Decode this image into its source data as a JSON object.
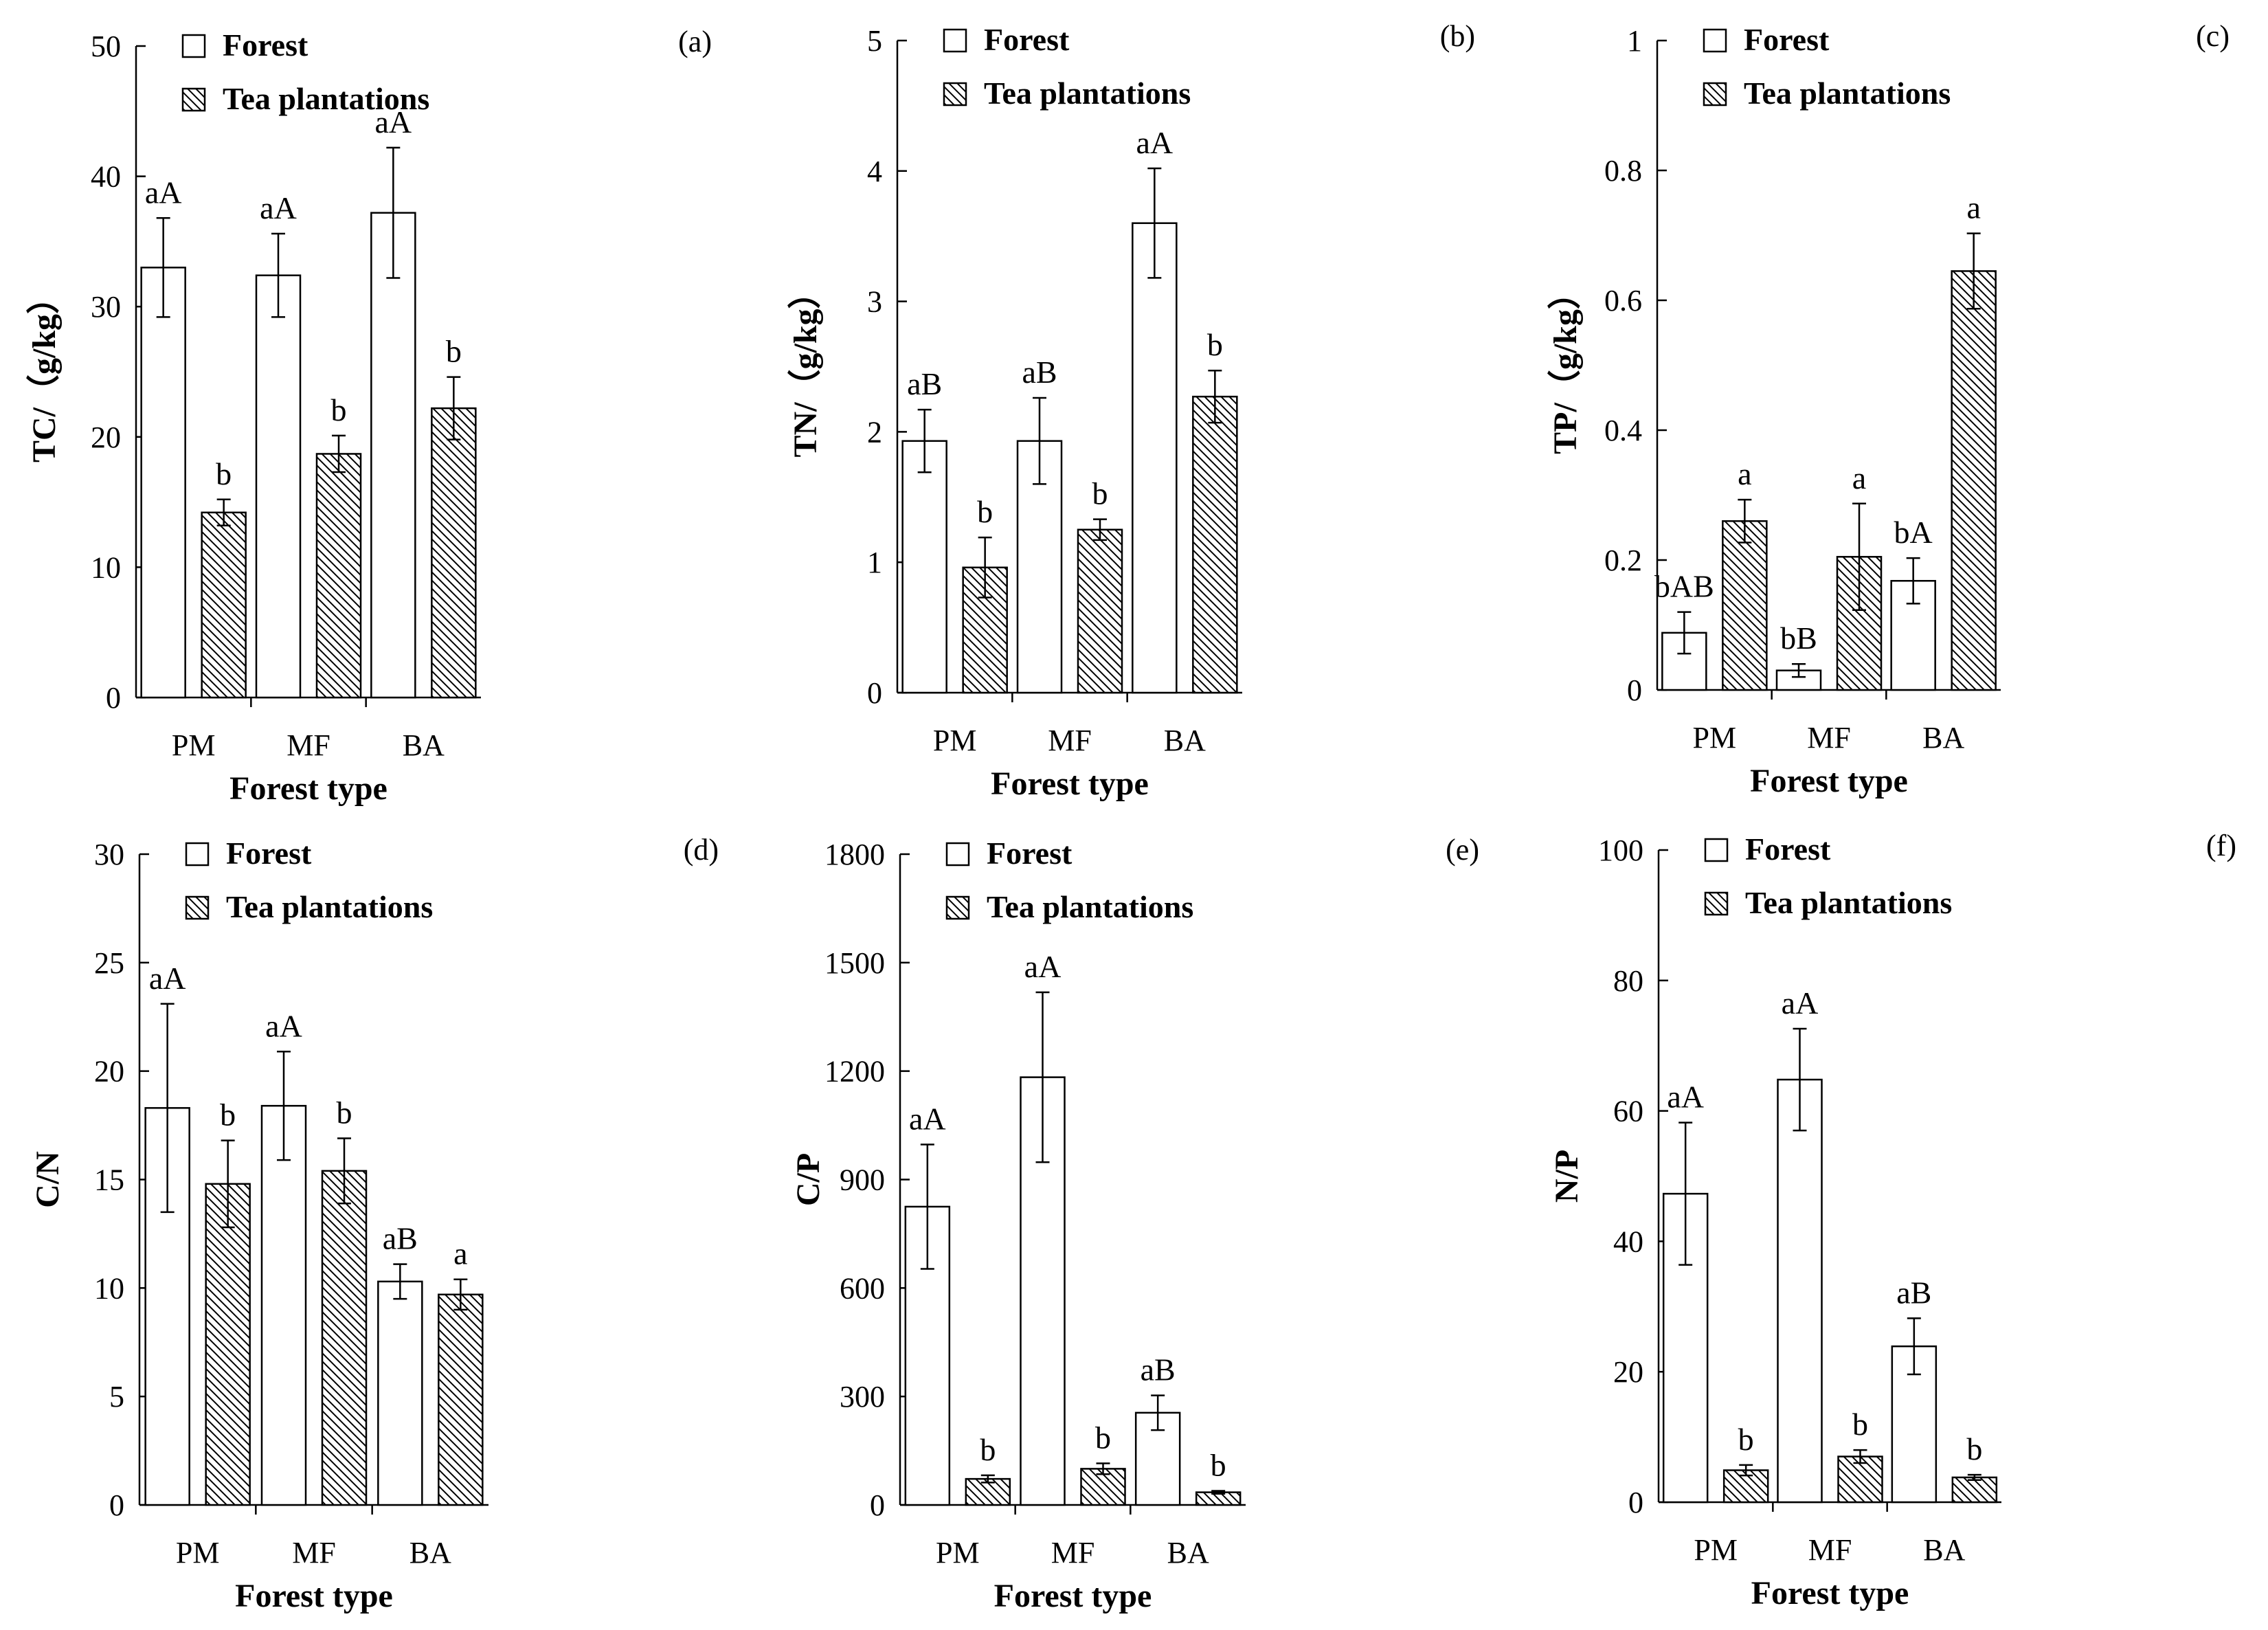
{
  "figure": {
    "series_names": [
      "Forest",
      "Tea plantations"
    ],
    "series_colors": {
      "forest": "#ffffff",
      "tea": "#ffffff",
      "stroke": "#000000"
    }
  },
  "chart_data": [
    {
      "type": "bar",
      "panel": "(a)",
      "title": "",
      "xlabel": "Forest type",
      "ylabel": "TC/（g/kg）",
      "ylim": [
        0,
        50
      ],
      "yticks": [
        "0",
        "10",
        "20",
        "30",
        "40",
        "50"
      ],
      "categories": [
        "PM",
        "MF",
        "BA"
      ],
      "series": [
        {
          "name": "Forest",
          "values": [
            33,
            32.4,
            37.2
          ],
          "errors": [
            3.8,
            3.2,
            5
          ],
          "labels": [
            "aA",
            "aA",
            "aA"
          ]
        },
        {
          "name": "Tea plantations",
          "values": [
            14.2,
            18.7,
            22.2
          ],
          "errors": [
            1,
            1.4,
            2.4
          ],
          "labels": [
            "b",
            "b",
            "b"
          ]
        }
      ]
    },
    {
      "type": "bar",
      "panel": "(b)",
      "title": "",
      "xlabel": "Forest type",
      "ylabel": "TN/（g/kg）",
      "ylim": [
        0,
        5
      ],
      "yticks": [
        "0",
        "1",
        "2",
        "3",
        "4",
        "5"
      ],
      "categories": [
        "PM",
        "MF",
        "BA"
      ],
      "series": [
        {
          "name": "Forest",
          "values": [
            1.93,
            1.93,
            3.6
          ],
          "errors": [
            0.24,
            0.33,
            0.42
          ],
          "labels": [
            "aB",
            "aB",
            "aA"
          ]
        },
        {
          "name": "Tea plantations",
          "values": [
            0.96,
            1.25,
            2.27
          ],
          "errors": [
            0.23,
            0.08,
            0.2
          ],
          "labels": [
            "b",
            "b",
            "b"
          ]
        }
      ]
    },
    {
      "type": "bar",
      "panel": "(c)",
      "title": "",
      "xlabel": "Forest type",
      "ylabel": "TP/（g/kg）",
      "ylim": [
        0,
        1
      ],
      "yticks": [
        "0",
        "0.2",
        "0.4",
        "0.6",
        "0.8",
        "1"
      ],
      "categories": [
        "PM",
        "MF",
        "BA"
      ],
      "series": [
        {
          "name": "Forest",
          "values": [
            0.088,
            0.03,
            0.168
          ],
          "errors": [
            0.032,
            0.01,
            0.035
          ],
          "labels": [
            "bAB",
            "bB",
            "bA"
          ]
        },
        {
          "name": "Tea plantations",
          "values": [
            0.26,
            0.205,
            0.645
          ],
          "errors": [
            0.033,
            0.082,
            0.058
          ],
          "labels": [
            "a",
            "a",
            "a"
          ]
        }
      ]
    },
    {
      "type": "bar",
      "panel": "(d)",
      "title": "",
      "xlabel": "Forest type",
      "ylabel": "C/N",
      "ylim": [
        0,
        30
      ],
      "yticks": [
        "0",
        "5",
        "10",
        "15",
        "20",
        "25",
        "30"
      ],
      "categories": [
        "PM",
        "MF",
        "BA"
      ],
      "series": [
        {
          "name": "Forest",
          "values": [
            18.3,
            18.4,
            10.3
          ],
          "errors": [
            4.8,
            2.5,
            0.8
          ],
          "labels": [
            "aA",
            "aA",
            "aB"
          ]
        },
        {
          "name": "Tea plantations",
          "values": [
            14.8,
            15.4,
            9.7
          ],
          "errors": [
            2,
            1.5,
            0.7
          ],
          "labels": [
            "b",
            "b",
            "a"
          ]
        }
      ]
    },
    {
      "type": "bar",
      "panel": "(e)",
      "title": "",
      "xlabel": "Forest type",
      "ylabel": "C/P",
      "ylim": [
        0,
        1800
      ],
      "yticks": [
        "0",
        "300",
        "600",
        "900",
        "1200",
        "1500",
        "1800"
      ],
      "categories": [
        "PM",
        "MF",
        "BA"
      ],
      "series": [
        {
          "name": "Forest",
          "values": [
            825,
            1183,
            255
          ],
          "errors": [
            172,
            235,
            48
          ],
          "labels": [
            "aA",
            "aA",
            "aB"
          ]
        },
        {
          "name": "Tea plantations",
          "values": [
            72,
            100,
            35
          ],
          "errors": [
            10,
            15,
            4
          ],
          "labels": [
            "b",
            "b",
            "b"
          ]
        }
      ]
    },
    {
      "type": "bar",
      "panel": "(f)",
      "title": "",
      "xlabel": "Forest type",
      "ylabel": "N/P",
      "ylim": [
        0,
        100
      ],
      "yticks": [
        "0",
        "20",
        "40",
        "60",
        "80",
        "100"
      ],
      "categories": [
        "PM",
        "MF",
        "BA"
      ],
      "series": [
        {
          "name": "Forest",
          "values": [
            47.3,
            64.8,
            23.9
          ],
          "errors": [
            10.9,
            7.8,
            4.3
          ],
          "labels": [
            "aA",
            "aA",
            "aB"
          ]
        },
        {
          "name": "Tea plantations",
          "values": [
            4.9,
            7,
            3.8
          ],
          "errors": [
            0.8,
            1,
            0.4
          ],
          "labels": [
            "b",
            "b",
            "b"
          ]
        }
      ]
    }
  ]
}
